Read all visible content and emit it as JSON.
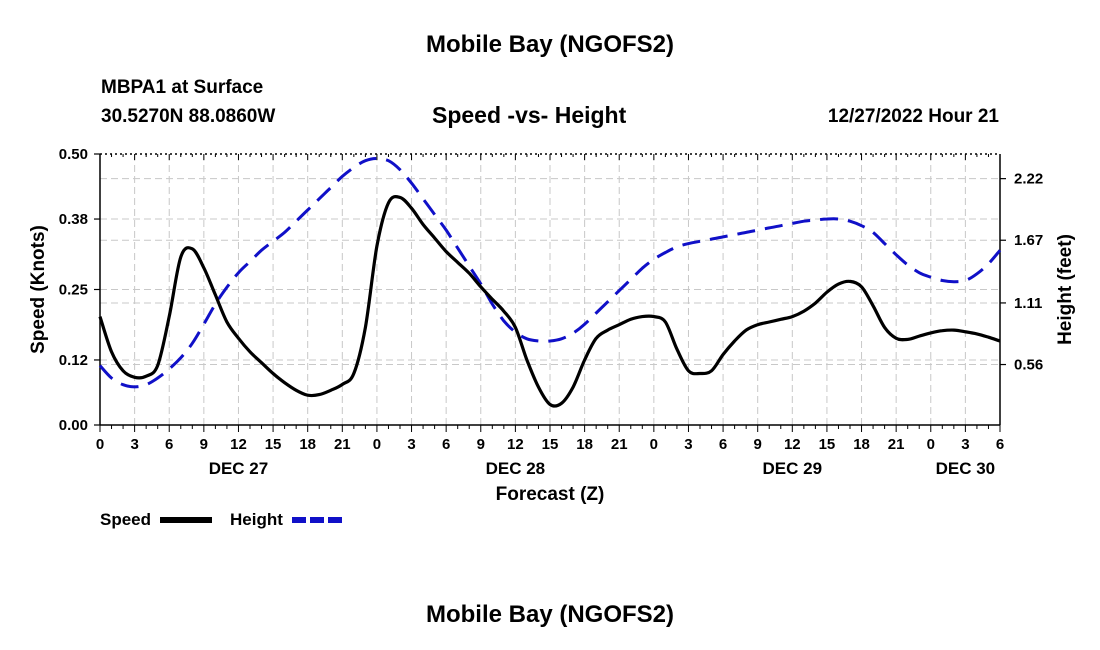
{
  "header": {
    "title": "Mobile Bay (NGOFS2)",
    "station": "MBPA1 at Surface",
    "coords": "30.5270N  88.0860W",
    "subtitle": "Speed -vs- Height",
    "datetime": "12/27/2022 Hour 21"
  },
  "footer": {
    "title": "Mobile Bay (NGOFS2)"
  },
  "legend": {
    "speed_label": "Speed",
    "height_label": "Height"
  },
  "colors": {
    "speed": "#000000",
    "height": "#1010c8",
    "grid": "#c8c8c8"
  },
  "chart_data": {
    "type": "line",
    "title": "Speed -vs- Height",
    "xlabel": "Forecast (Z)",
    "ylabel": "Speed (Knots)",
    "y2label": "Height (feet)",
    "x_unit": "hours from DEC 27 00Z",
    "xlim": [
      0,
      78
    ],
    "ylim": [
      0,
      0.5
    ],
    "y2lim": [
      0.02,
      2.44
    ],
    "x_ticks": [
      0,
      3,
      6,
      9,
      12,
      15,
      18,
      21,
      24,
      27,
      30,
      33,
      36,
      39,
      42,
      45,
      48,
      51,
      54,
      57,
      60,
      63,
      66,
      69,
      72,
      75,
      78
    ],
    "x_tick_labels": [
      "0",
      "3",
      "6",
      "9",
      "12",
      "15",
      "18",
      "21",
      "0",
      "3",
      "6",
      "9",
      "12",
      "15",
      "18",
      "21",
      "0",
      "3",
      "6",
      "9",
      "12",
      "15",
      "18",
      "21",
      "0",
      "3",
      "6"
    ],
    "date_labels": [
      {
        "label": "DEC 27",
        "x": 12
      },
      {
        "label": "DEC 28",
        "x": 36
      },
      {
        "label": "DEC 29",
        "x": 60
      },
      {
        "label": "DEC 30",
        "x": 75
      }
    ],
    "y_ticks": [
      0.0,
      0.12,
      0.25,
      0.38,
      0.5
    ],
    "y_tick_labels": [
      "0.00",
      "0.12",
      "0.25",
      "0.38",
      "0.50"
    ],
    "y2_ticks": [
      0.56,
      1.11,
      1.67,
      2.22
    ],
    "y2_tick_labels": [
      "0.56",
      "1.11",
      "1.67",
      "2.22"
    ],
    "grid": true,
    "legend_position": "bottom-left",
    "series": [
      {
        "name": "Speed",
        "axis": "left",
        "style": "solid",
        "x": [
          0,
          1,
          2,
          3,
          4,
          5,
          6,
          7,
          8,
          9,
          10,
          11,
          12,
          13,
          14,
          15,
          16,
          17,
          18,
          19,
          20,
          21,
          22,
          23,
          24,
          25,
          26,
          27,
          28,
          29,
          30,
          31,
          32,
          33,
          34,
          35,
          36,
          37,
          38,
          39,
          40,
          41,
          42,
          43,
          44,
          45,
          46,
          47,
          48,
          49,
          50,
          51,
          52,
          53,
          54,
          55,
          56,
          57,
          58,
          59,
          60,
          61,
          62,
          63,
          64,
          65,
          66,
          67,
          68,
          69,
          70,
          71,
          72,
          73,
          74,
          75,
          76,
          77,
          78
        ],
        "values": [
          0.2,
          0.135,
          0.1,
          0.088,
          0.09,
          0.11,
          0.2,
          0.31,
          0.325,
          0.29,
          0.24,
          0.19,
          0.16,
          0.135,
          0.115,
          0.095,
          0.078,
          0.064,
          0.055,
          0.056,
          0.064,
          0.075,
          0.095,
          0.18,
          0.33,
          0.41,
          0.42,
          0.4,
          0.37,
          0.345,
          0.32,
          0.3,
          0.28,
          0.255,
          0.232,
          0.21,
          0.18,
          0.12,
          0.07,
          0.038,
          0.04,
          0.07,
          0.12,
          0.16,
          0.175,
          0.185,
          0.195,
          0.2,
          0.2,
          0.19,
          0.14,
          0.1,
          0.095,
          0.1,
          0.13,
          0.155,
          0.175,
          0.185,
          0.19,
          0.195,
          0.2,
          0.21,
          0.225,
          0.245,
          0.26,
          0.265,
          0.255,
          0.22,
          0.18,
          0.16,
          0.158,
          0.164,
          0.17,
          0.174,
          0.175,
          0.172,
          0.168,
          0.162,
          0.155
        ]
      },
      {
        "name": "Height",
        "axis": "right",
        "style": "dashed",
        "x": [
          0,
          1,
          2,
          3,
          4,
          5,
          6,
          7,
          8,
          9,
          10,
          11,
          12,
          13,
          14,
          15,
          16,
          17,
          18,
          19,
          20,
          21,
          22,
          23,
          24,
          25,
          26,
          27,
          28,
          29,
          30,
          31,
          32,
          33,
          34,
          35,
          36,
          37,
          38,
          39,
          40,
          41,
          42,
          43,
          44,
          45,
          46,
          47,
          48,
          49,
          50,
          51,
          52,
          53,
          54,
          55,
          56,
          57,
          58,
          59,
          60,
          61,
          62,
          63,
          64,
          65,
          66,
          67,
          68,
          69,
          70,
          71,
          72,
          73,
          74,
          75,
          76,
          77,
          78
        ],
        "values": [
          0.55,
          0.44,
          0.38,
          0.36,
          0.38,
          0.44,
          0.52,
          0.62,
          0.75,
          0.92,
          1.1,
          1.25,
          1.38,
          1.48,
          1.58,
          1.66,
          1.74,
          1.84,
          1.94,
          2.04,
          2.14,
          2.24,
          2.32,
          2.38,
          2.4,
          2.38,
          2.3,
          2.18,
          2.04,
          1.9,
          1.76,
          1.6,
          1.44,
          1.28,
          1.1,
          0.95,
          0.85,
          0.79,
          0.77,
          0.77,
          0.79,
          0.84,
          0.92,
          1.02,
          1.12,
          1.22,
          1.32,
          1.42,
          1.5,
          1.56,
          1.61,
          1.64,
          1.66,
          1.68,
          1.7,
          1.72,
          1.74,
          1.76,
          1.78,
          1.8,
          1.82,
          1.84,
          1.85,
          1.86,
          1.86,
          1.84,
          1.8,
          1.74,
          1.64,
          1.54,
          1.45,
          1.38,
          1.34,
          1.31,
          1.3,
          1.31,
          1.37,
          1.46,
          1.58
        ]
      }
    ]
  }
}
